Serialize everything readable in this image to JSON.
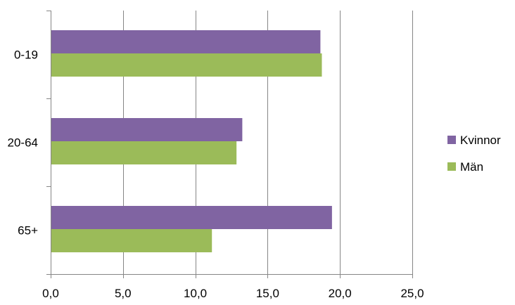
{
  "chart_data": {
    "type": "bar",
    "orientation": "horizontal",
    "categories": [
      "0-19",
      "20-64",
      "65+"
    ],
    "series": [
      {
        "name": "Kvinnor",
        "values": [
          18.6,
          13.2,
          19.4
        ],
        "color": "#8064A2"
      },
      {
        "name": "Män",
        "values": [
          18.7,
          12.8,
          11.1
        ],
        "color": "#9BBB59"
      }
    ],
    "xlim": [
      0,
      25
    ],
    "xticks": [
      "0,0",
      "5,0",
      "10,0",
      "15,0",
      "20,0",
      "25,0"
    ],
    "grid": true,
    "legend_position": "right"
  }
}
